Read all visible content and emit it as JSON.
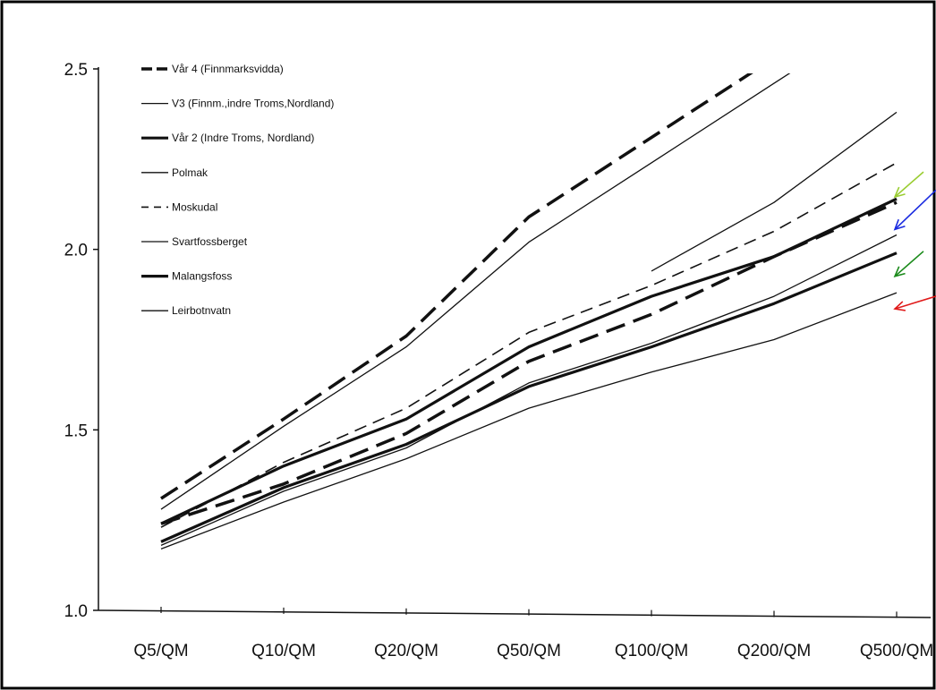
{
  "chart_data": {
    "type": "line",
    "title": "",
    "xlabel": "",
    "ylabel": "",
    "ylim": [
      1.0,
      2.5
    ],
    "yticks": [
      "1.0",
      "1.5",
      "2.0",
      "2.5"
    ],
    "categories": [
      "Q5/QM",
      "Q10/QM",
      "Q20/QM",
      "Q50/QM",
      "Q100/QM",
      "Q200/QM",
      "Q500/QM"
    ],
    "legend_position": "top-left",
    "grid": false,
    "series": [
      {
        "name": "Vår 4 (Finnmarksvidda)",
        "style": "dashed-thick",
        "values": [
          1.31,
          1.53,
          1.76,
          2.09,
          2.31,
          2.53,
          null
        ]
      },
      {
        "name": "V3 (Finnm.,indre Troms,Nordland)",
        "style": "solid-thin",
        "values": [
          1.28,
          1.51,
          1.73,
          2.02,
          2.24,
          2.46,
          null
        ]
      },
      {
        "name": "Vår 2 (Indre Troms, Nordland)",
        "style": "solid-thick",
        "values": [
          1.24,
          1.4,
          1.53,
          1.73,
          1.87,
          1.98,
          2.14
        ]
      },
      {
        "name": "Polmak",
        "style": "solid-thin",
        "values": [
          null,
          null,
          null,
          null,
          1.94,
          2.13,
          2.38
        ]
      },
      {
        "name": "Moskudal",
        "style": "dashed-thin",
        "values": [
          1.23,
          1.41,
          1.56,
          1.77,
          1.9,
          2.05,
          2.24
        ]
      },
      {
        "name": "Svartfossberget",
        "style": "solid-thin",
        "values": [
          1.18,
          1.33,
          1.45,
          1.63,
          1.74,
          1.87,
          2.04
        ]
      },
      {
        "name": "Malangsfoss",
        "style": "solid-thick",
        "values": [
          1.19,
          1.34,
          1.46,
          1.62,
          1.73,
          1.85,
          1.99
        ]
      },
      {
        "name": "Leirbotnvatn",
        "style": "solid-thin",
        "values": [
          1.17,
          1.3,
          1.42,
          1.56,
          1.66,
          1.75,
          1.88
        ]
      },
      {
        "name": "",
        "style": "dashed-thick",
        "values": [
          1.24,
          1.35,
          1.49,
          1.69,
          1.82,
          1.98,
          2.13
        ]
      }
    ],
    "annotations": {
      "arrows": [
        {
          "color": "#9acd32",
          "target_value": 2.17
        },
        {
          "color": "#1a2be0",
          "target_value": 2.08
        },
        {
          "color": "#1a8a1a",
          "target_value": 1.95
        },
        {
          "color": "#e01a1a",
          "target_value": 1.86
        }
      ]
    }
  }
}
